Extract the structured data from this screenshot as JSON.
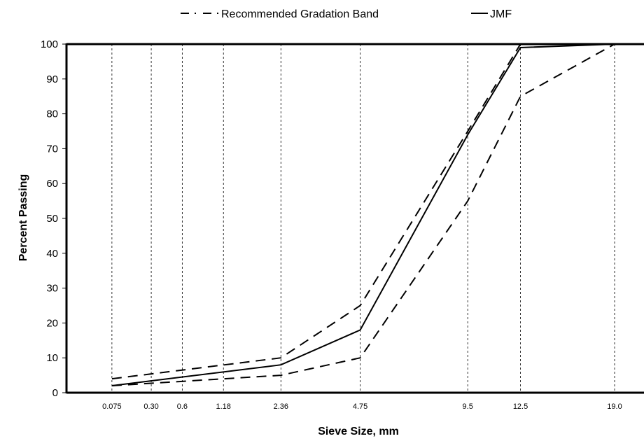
{
  "chart_data": {
    "type": "line",
    "xlabel": "Sieve Size, mm",
    "ylabel": "Percent Passing",
    "x_scale": "power-0.45",
    "ylim": [
      0,
      100
    ],
    "y_ticks": [
      0,
      10,
      20,
      30,
      40,
      50,
      60,
      70,
      80,
      90,
      100
    ],
    "x_ticks": [
      {
        "value": 0.075,
        "label": "0.075"
      },
      {
        "value": 0.3,
        "label": "0.30"
      },
      {
        "value": 0.6,
        "label": "0.6"
      },
      {
        "value": 1.18,
        "label": "1.18"
      },
      {
        "value": 2.36,
        "label": "2.36"
      },
      {
        "value": 4.75,
        "label": "4.75"
      },
      {
        "value": 9.5,
        "label": "9.5"
      },
      {
        "value": 12.5,
        "label": "12.5"
      },
      {
        "value": 19.0,
        "label": "19.0"
      }
    ],
    "grid": {
      "x": true,
      "y": false
    },
    "legend_position": "top-center",
    "legend": [
      {
        "label": "Recommended Gradation Band",
        "style": "dashed"
      },
      {
        "label": "JMF",
        "style": "solid"
      }
    ],
    "series": [
      {
        "legend_index": 0,
        "style": "dashed",
        "points": [
          [
            0.075,
            4
          ],
          [
            2.36,
            10
          ],
          [
            4.75,
            25
          ],
          [
            9.5,
            75
          ],
          [
            12.5,
            100
          ],
          [
            19.0,
            100
          ]
        ]
      },
      {
        "legend_index": 0,
        "style": "dashed",
        "points": [
          [
            0.075,
            2
          ],
          [
            2.36,
            5
          ],
          [
            4.75,
            10
          ],
          [
            9.5,
            55
          ],
          [
            12.5,
            85
          ],
          [
            19.0,
            100
          ]
        ]
      },
      {
        "legend_index": 1,
        "style": "solid",
        "points": [
          [
            0.075,
            2
          ],
          [
            2.36,
            8
          ],
          [
            4.75,
            18
          ],
          [
            9.5,
            74
          ],
          [
            12.5,
            99
          ],
          [
            19.0,
            100
          ]
        ]
      }
    ],
    "colors": {
      "line": "#000000",
      "grid": "#000000",
      "background": "#ffffff"
    }
  }
}
